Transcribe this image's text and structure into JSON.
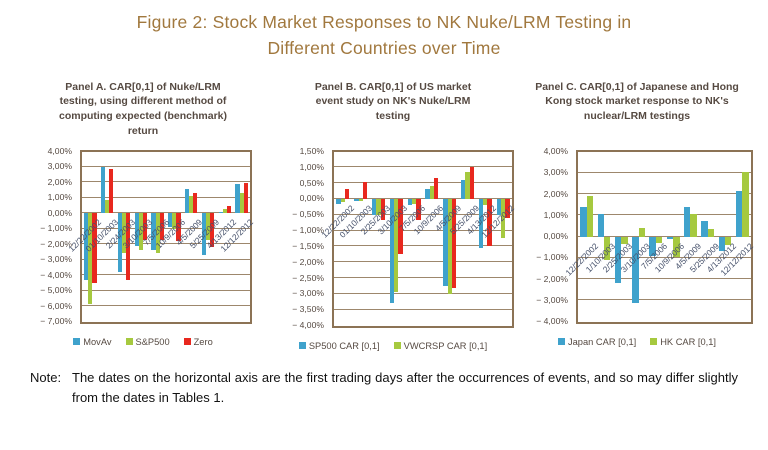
{
  "figure": {
    "title_line1": "Figure 2: Stock Market Responses to NK Nuke/LRM Testing in",
    "title_line2": "Different Countries over Time",
    "note_label": "Note:",
    "note_text": "The dates on the horizontal axis are the first trading days after the occurrences of events, and so may differ slightly from the dates in Tables 1."
  },
  "colors": {
    "title_text": "#a1783e",
    "panel_text": "#564a42",
    "date_text": "#45506a",
    "plot_border": "#8c7355",
    "gridline": "#9d876c",
    "bar_blue": "#3fa2cc",
    "bar_green": "#a6c93f",
    "bar_red": "#e8281e"
  },
  "chart_data": [
    {
      "type": "bar",
      "title": "Panel A. CAR[0,1] of Nuke/LRM testing, using different method of computing expected (benchmark) return",
      "ylim": [
        -7,
        4
      ],
      "grid": true,
      "legend_position": "bottom",
      "ytick_labels": [
        "4,00%",
        "3,00%",
        "2,00%",
        "1,00%",
        "0,00%",
        "− 1,00%",
        "− 2,00%",
        "− 3,00%",
        "− 4,00%",
        "− 5,00%",
        "− 6,00%",
        "− 7,00%"
      ],
      "categories": [
        "12/22/2002",
        "01/10/2003",
        "2/24/2003",
        "3/10/2003",
        "7/5/2006",
        "10/9/2006",
        "4/5/2009",
        "5/25/2009",
        "4/13/2012",
        "12/12/2012"
      ],
      "series": [
        {
          "name": "MovAv",
          "color": "#3fa2cc",
          "values": [
            -4.3,
            3.0,
            -3.8,
            -2.1,
            -2.4,
            -0.9,
            1.6,
            -2.7,
            0.05,
            1.9
          ]
        },
        {
          "name": "S&P500",
          "color": "#a6c93f",
          "values": [
            -5.9,
            0.85,
            -2.6,
            -2.35,
            -2.6,
            -1.0,
            1.15,
            -1.75,
            0.3,
            1.3
          ]
        },
        {
          "name": "Zero",
          "color": "#e8281e",
          "values": [
            -4.5,
            2.85,
            -4.3,
            -1.7,
            -1.75,
            -1.8,
            1.3,
            -2.2,
            0.5,
            1.95
          ]
        }
      ],
      "legend": [
        {
          "label": "MovAv",
          "color": "#3fa2cc"
        },
        {
          "label": "S&P500",
          "color": "#a6c93f"
        },
        {
          "label": "Zero",
          "color": "#e8281e"
        }
      ]
    },
    {
      "type": "bar",
      "title": "Panel B. CAR[0,1] of US market event study on NK's Nuke/LRM testing",
      "ylim": [
        -4,
        1.5
      ],
      "grid": true,
      "legend_position": "bottom",
      "ytick_labels": [
        "1,50%",
        "1,00%",
        "0,50%",
        "0,00%",
        "− 0,50%",
        "− 1,00%",
        "− 1,50%",
        "− 2,00%",
        "− 2,50%",
        "− 3,00%",
        "− 3,50%",
        "− 4,00%"
      ],
      "categories": [
        "12/22/2002",
        "01/10/2003",
        "2/25/2003",
        "3/10/2003",
        "7/5/2006",
        "10/9/2006",
        "4/5/2009",
        "5/25/2009",
        "4/13/2012",
        "12/12/2012"
      ],
      "series": [
        {
          "name": "SP500 CAR [0,1]",
          "color": "#3fa2cc",
          "values": [
            -0.15,
            -0.05,
            -0.5,
            -3.3,
            -0.2,
            0.3,
            -2.75,
            0.6,
            -1.55,
            -0.5
          ]
        },
        {
          "name": "VWCRSP CAR [0,1]",
          "color": "#a6c93f",
          "values": [
            -0.1,
            -0.05,
            -0.5,
            -2.95,
            -0.15,
            0.4,
            -3.0,
            0.85,
            -0.2,
            -1.25
          ]
        },
        {
          "name": "",
          "color": "#e8281e",
          "values": [
            0.3,
            0.55,
            -0.65,
            -1.75,
            -0.65,
            0.65,
            -2.8,
            1.0,
            -1.5,
            -0.6
          ]
        }
      ],
      "legend": [
        {
          "label": "SP500 CAR [0,1]",
          "color": "#3fa2cc"
        },
        {
          "label": "VWCRSP CAR [0,1]",
          "color": "#a6c93f"
        }
      ]
    },
    {
      "type": "bar",
      "title": "Panel C. CAR[0,1] of Japanese and Hong Kong stock market response to NK's nuclear/LRM testings",
      "ylim": [
        -4,
        4
      ],
      "grid": true,
      "legend_position": "bottom",
      "ytick_labels": [
        "4,00%",
        "3,00%",
        "2,00%",
        "1,00%",
        "0,00%",
        "− 1,00%",
        "− 2,00%",
        "− 3,00%",
        "− 4,00%"
      ],
      "categories": [
        "12/22/2002",
        "1/10/2003",
        "2/25/2003",
        "3/10/2003",
        "7/5/2006",
        "10/9/2006",
        "4/5/2009",
        "5/25/2009",
        "4/13/2012",
        "12/12/2012"
      ],
      "series": [
        {
          "name": "Japan CAR [0,1]",
          "color": "#3fa2cc",
          "values": [
            1.4,
            1.05,
            -2.2,
            -3.15,
            -0.9,
            -0.1,
            1.4,
            0.75,
            -0.7,
            2.15
          ]
        },
        {
          "name": "HK CAR [0,1]",
          "color": "#a6c93f",
          "values": [
            1.9,
            -1.1,
            -0.35,
            0.4,
            -0.3,
            -0.95,
            1.05,
            0.35,
            -0.4,
            3.05
          ]
        }
      ],
      "legend": [
        {
          "label": "Japan CAR [0,1]",
          "color": "#3fa2cc"
        },
        {
          "label": "HK CAR [0,1]",
          "color": "#a6c93f"
        }
      ]
    }
  ]
}
